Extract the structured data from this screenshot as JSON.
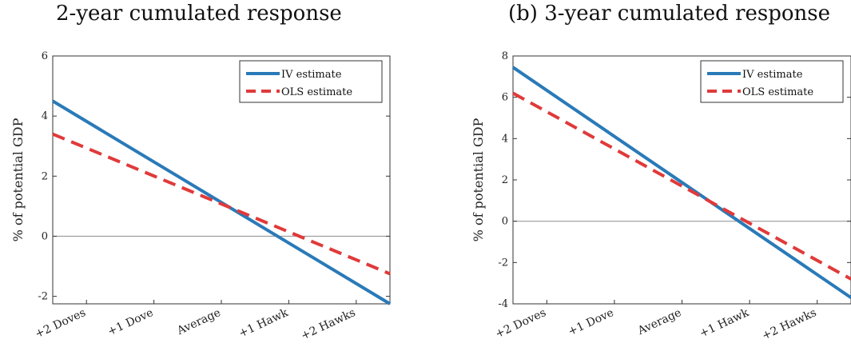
{
  "chart_data": [
    {
      "type": "line",
      "title": "2-year cumulated response",
      "ylabel": "% of potential GDP",
      "xlabel": "",
      "categories": [
        "+2 Doves",
        "+1 Dove",
        "Average",
        "+1 Hawk",
        "+2 Hawks"
      ],
      "ylim": [
        -2.25,
        6
      ],
      "yticks": [
        -2,
        0,
        2,
        4,
        6
      ],
      "legend": "top-right",
      "grid": false,
      "series": [
        {
          "name": "IV estimate",
          "style": "solid",
          "color": "#2a7ab8",
          "x": [
            -2.5,
            2.5
          ],
          "y": [
            4.5,
            -2.25
          ]
        },
        {
          "name": "OLS estimate",
          "style": "dashed",
          "color": "#e03a3a",
          "x": [
            -2.5,
            2.5
          ],
          "y": [
            3.4,
            -1.25
          ]
        }
      ]
    },
    {
      "type": "line",
      "title": "(b) 3-year cumulated response",
      "ylabel": "% of potential GDP",
      "xlabel": "",
      "categories": [
        "+2 Doves",
        "+1 Dove",
        "Average",
        "+1 Hawk",
        "+2 Hawks"
      ],
      "ylim": [
        -4,
        8
      ],
      "yticks": [
        -4,
        -2,
        0,
        2,
        4,
        6,
        8
      ],
      "legend": "top-right",
      "grid": false,
      "series": [
        {
          "name": "IV estimate",
          "style": "solid",
          "color": "#2a7ab8",
          "x": [
            -2.5,
            2.5
          ],
          "y": [
            7.45,
            -3.7
          ]
        },
        {
          "name": "OLS estimate",
          "style": "dashed",
          "color": "#e03a3a",
          "x": [
            -2.5,
            2.5
          ],
          "y": [
            6.2,
            -2.8
          ]
        }
      ]
    }
  ]
}
